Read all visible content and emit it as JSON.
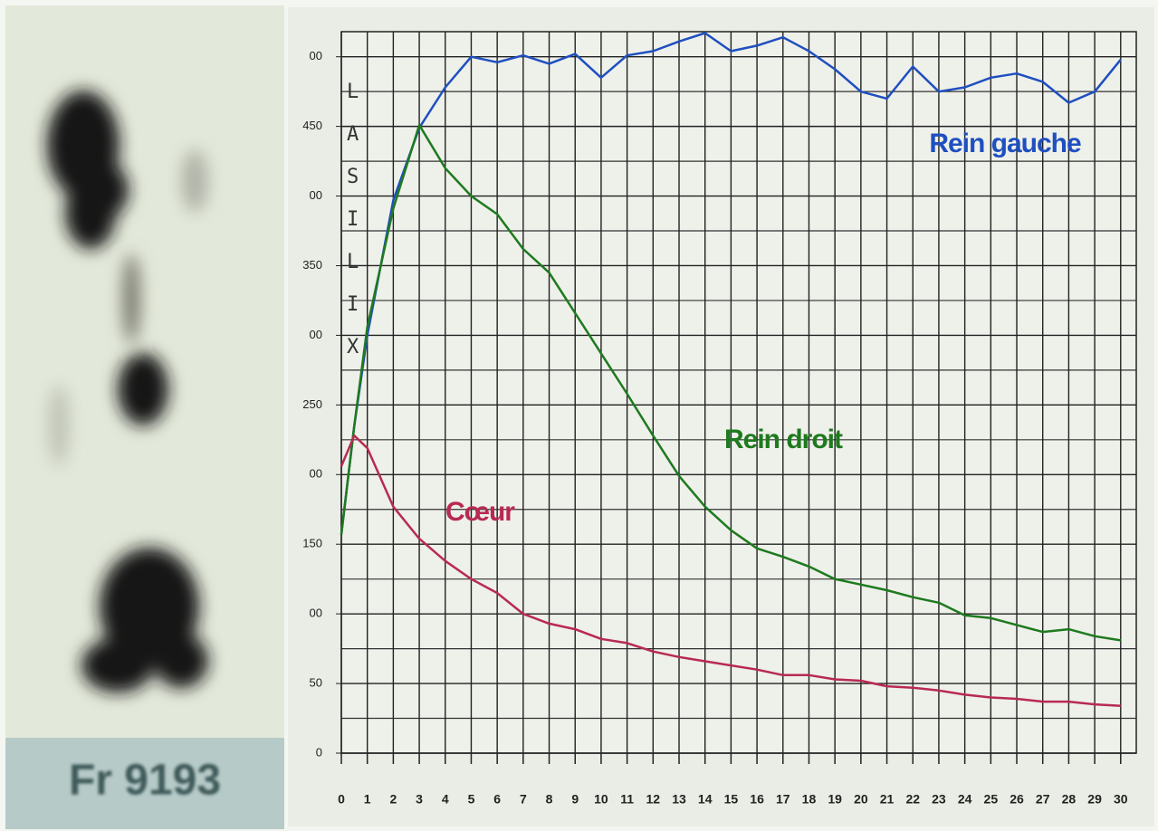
{
  "image_label": "Fr 9193",
  "chart_data": {
    "type": "line",
    "annotation": "LASILIX",
    "x": [
      0,
      0.5,
      1,
      2,
      3,
      4,
      5,
      6,
      7,
      8,
      9,
      10,
      11,
      12,
      13,
      14,
      15,
      16,
      17,
      18,
      19,
      20,
      21,
      22,
      23,
      24,
      25,
      26,
      27,
      28,
      29,
      30
    ],
    "series": [
      {
        "name": "Rein gauche",
        "color": "#1f4fc0",
        "values": [
          157,
          235,
          300,
          397,
          449,
          478,
          500,
          496,
          501,
          495,
          502,
          485,
          501,
          504,
          511,
          517,
          504,
          508,
          514,
          504,
          491,
          475,
          470,
          493,
          475,
          478,
          485,
          488,
          482,
          467,
          475,
          498
        ]
      },
      {
        "name": "Rein droit",
        "color": "#1e7a1e",
        "values": [
          157,
          235,
          306,
          391,
          451,
          420,
          400,
          387,
          362,
          345,
          316,
          287,
          258,
          228,
          199,
          177,
          160,
          147,
          141,
          134,
          125,
          121,
          117,
          112,
          108,
          99,
          97,
          92,
          87,
          89,
          84,
          81
        ]
      },
      {
        "name": "Cœur",
        "color": "#b82a52",
        "values": [
          206,
          228,
          219,
          177,
          154,
          138,
          125,
          115,
          100,
          93,
          89,
          82,
          79,
          73,
          69,
          66,
          63,
          60,
          56,
          56,
          53,
          52,
          48,
          47,
          45,
          42,
          40,
          39,
          37,
          37,
          35,
          34
        ]
      }
    ],
    "xlim": [
      0,
      30.6
    ],
    "xticks": [
      0,
      1,
      2,
      3,
      4,
      5,
      6,
      7,
      8,
      9,
      10,
      11,
      12,
      13,
      14,
      15,
      16,
      17,
      18,
      19,
      20,
      21,
      22,
      23,
      24,
      25,
      26,
      27,
      28,
      29,
      30
    ],
    "ylim": [
      0,
      518
    ],
    "yticks": [
      0,
      50,
      {
        "value": 100,
        "label": "00"
      },
      150,
      {
        "value": 200,
        "label": "00"
      },
      250,
      {
        "value": 300,
        "label": "00"
      },
      350,
      {
        "value": 400,
        "label": "00"
      },
      450,
      {
        "value": 500,
        "label": "00"
      }
    ],
    "yminor": [
      25,
      75,
      125,
      175,
      225,
      275,
      325,
      375,
      425,
      475
    ],
    "grid": true
  }
}
